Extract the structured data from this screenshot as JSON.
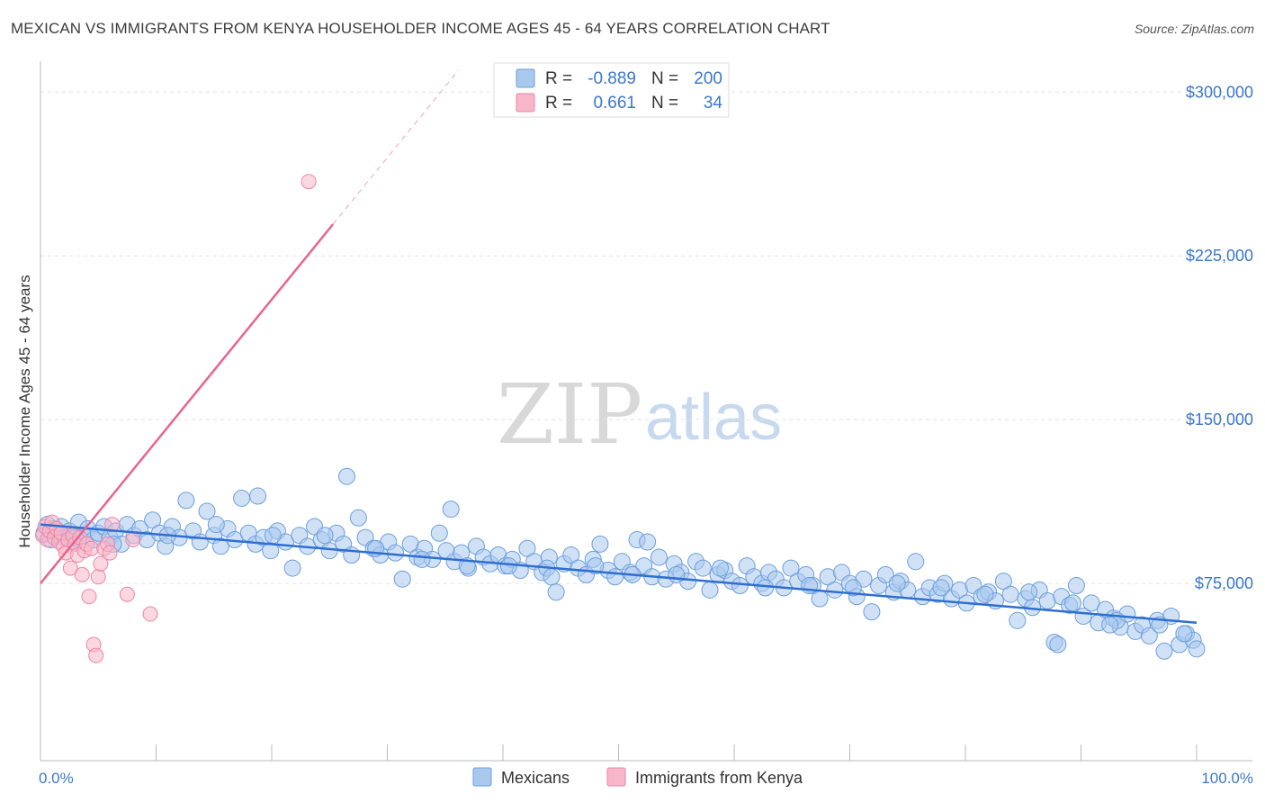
{
  "header": {
    "title": "MEXICAN VS IMMIGRANTS FROM KENYA HOUSEHOLDER INCOME AGES 45 - 64 YEARS CORRELATION CHART",
    "source": "Source: ZipAtlas.com"
  },
  "watermark": {
    "zip": "ZIP",
    "atlas": "atlas"
  },
  "legend_top": [
    {
      "r_label": "R =",
      "r_value": "-0.889",
      "n_label": "N =",
      "n_value": "200"
    },
    {
      "r_label": "R =",
      "r_value": "0.661",
      "n_label": "N =",
      "n_value": "34"
    }
  ],
  "legend_bottom": [
    "Mexicans",
    "Immigrants from Kenya"
  ],
  "colors": {
    "mexicans_fill": "#a9c8ee",
    "mexicans_stroke": "#6b9fdc",
    "mexicans_line": "#2f6fd1",
    "kenya_fill": "#f7b6c9",
    "kenya_stroke": "#ee86a6",
    "kenya_line": "#e8648f",
    "tick_text": "#3b78c9",
    "grid": "#e3e3e3"
  },
  "chart_data": {
    "type": "scatter",
    "xlabel": "",
    "ylabel": "Householder Income Ages 45 - 64 years",
    "xlim": [
      0,
      100
    ],
    "ylim": [
      0,
      310000
    ],
    "x_tick_labels": [
      "0.0%",
      "100.0%"
    ],
    "y_ticks": [
      75000,
      150000,
      225000,
      300000
    ],
    "y_tick_labels": [
      "$75,000",
      "$150,000",
      "$225,000",
      "$300,000"
    ],
    "grid": true,
    "series": [
      {
        "name": "Mexicans",
        "r": -0.889,
        "n": 200,
        "trend": {
          "x": [
            0,
            100
          ],
          "y": [
            102000,
            57000
          ]
        },
        "points": [
          [
            0.3,
            98000
          ],
          [
            0.6,
            102000
          ],
          [
            0.9,
            95000
          ],
          [
            1.2,
            100000
          ],
          [
            1.5,
            97000
          ],
          [
            1.8,
            101000
          ],
          [
            2.1,
            96000
          ],
          [
            2.5,
            99000
          ],
          [
            2.9,
            94000
          ],
          [
            3.3,
            103000
          ],
          [
            3.7,
            97000
          ],
          [
            4.1,
            100000
          ],
          [
            4.6,
            95000
          ],
          [
            5.0,
            98000
          ],
          [
            5.5,
            101000
          ],
          [
            6.0,
            96000
          ],
          [
            6.5,
            99000
          ],
          [
            7.0,
            93000
          ],
          [
            7.5,
            102000
          ],
          [
            8.1,
            97000
          ],
          [
            8.6,
            100000
          ],
          [
            9.2,
            95000
          ],
          [
            9.7,
            104000
          ],
          [
            10.3,
            98000
          ],
          [
            10.8,
            92000
          ],
          [
            11.4,
            101000
          ],
          [
            12.0,
            96000
          ],
          [
            12.6,
            113000
          ],
          [
            13.2,
            99000
          ],
          [
            13.8,
            94000
          ],
          [
            14.4,
            108000
          ],
          [
            15.0,
            97000
          ],
          [
            15.6,
            92000
          ],
          [
            16.2,
            100000
          ],
          [
            16.8,
            95000
          ],
          [
            17.4,
            114000
          ],
          [
            18.0,
            98000
          ],
          [
            18.6,
            93000
          ],
          [
            19.3,
            96000
          ],
          [
            19.9,
            90000
          ],
          [
            20.5,
            99000
          ],
          [
            21.2,
            94000
          ],
          [
            21.8,
            82000
          ],
          [
            22.4,
            97000
          ],
          [
            23.1,
            92000
          ],
          [
            23.7,
            101000
          ],
          [
            24.3,
            95000
          ],
          [
            25.0,
            90000
          ],
          [
            25.6,
            98000
          ],
          [
            26.2,
            93000
          ],
          [
            26.9,
            88000
          ],
          [
            27.5,
            105000
          ],
          [
            28.1,
            96000
          ],
          [
            28.8,
            91000
          ],
          [
            29.4,
            88000
          ],
          [
            30.1,
            94000
          ],
          [
            30.7,
            89000
          ],
          [
            31.3,
            77000
          ],
          [
            32.0,
            93000
          ],
          [
            32.6,
            87000
          ],
          [
            33.2,
            91000
          ],
          [
            33.9,
            86000
          ],
          [
            34.5,
            98000
          ],
          [
            35.1,
            90000
          ],
          [
            35.8,
            85000
          ],
          [
            36.4,
            89000
          ],
          [
            37.0,
            82000
          ],
          [
            37.7,
            92000
          ],
          [
            38.3,
            87000
          ],
          [
            38.9,
            84000
          ],
          [
            39.6,
            88000
          ],
          [
            40.2,
            83000
          ],
          [
            40.8,
            86000
          ],
          [
            41.5,
            81000
          ],
          [
            42.1,
            91000
          ],
          [
            42.7,
            85000
          ],
          [
            43.4,
            80000
          ],
          [
            44.0,
            87000
          ],
          [
            44.6,
            71000
          ],
          [
            45.3,
            84000
          ],
          [
            45.9,
            88000
          ],
          [
            46.5,
            82000
          ],
          [
            47.2,
            79000
          ],
          [
            47.8,
            86000
          ],
          [
            48.4,
            93000
          ],
          [
            49.1,
            81000
          ],
          [
            49.7,
            78000
          ],
          [
            50.3,
            85000
          ],
          [
            51.0,
            80000
          ],
          [
            51.6,
            95000
          ],
          [
            52.2,
            83000
          ],
          [
            52.9,
            78000
          ],
          [
            53.5,
            87000
          ],
          [
            54.1,
            77000
          ],
          [
            54.8,
            84000
          ],
          [
            55.4,
            80000
          ],
          [
            56.0,
            76000
          ],
          [
            56.7,
            85000
          ],
          [
            57.3,
            82000
          ],
          [
            57.9,
            72000
          ],
          [
            58.6,
            79000
          ],
          [
            59.2,
            81000
          ],
          [
            59.8,
            76000
          ],
          [
            60.5,
            74000
          ],
          [
            61.1,
            83000
          ],
          [
            61.7,
            78000
          ],
          [
            62.4,
            75000
          ],
          [
            63.0,
            80000
          ],
          [
            63.6,
            77000
          ],
          [
            64.3,
            73000
          ],
          [
            64.9,
            82000
          ],
          [
            65.5,
            76000
          ],
          [
            66.2,
            79000
          ],
          [
            66.8,
            74000
          ],
          [
            67.4,
            68000
          ],
          [
            68.1,
            78000
          ],
          [
            68.7,
            72000
          ],
          [
            69.3,
            80000
          ],
          [
            70.0,
            75000
          ],
          [
            70.6,
            69000
          ],
          [
            71.2,
            77000
          ],
          [
            71.9,
            62000
          ],
          [
            72.5,
            74000
          ],
          [
            73.1,
            79000
          ],
          [
            73.8,
            71000
          ],
          [
            74.4,
            76000
          ],
          [
            75.0,
            72000
          ],
          [
            75.7,
            85000
          ],
          [
            76.3,
            69000
          ],
          [
            76.9,
            73000
          ],
          [
            77.6,
            70000
          ],
          [
            78.2,
            75000
          ],
          [
            78.8,
            68000
          ],
          [
            79.5,
            72000
          ],
          [
            80.1,
            66000
          ],
          [
            80.7,
            74000
          ],
          [
            81.4,
            69000
          ],
          [
            82.0,
            71000
          ],
          [
            82.6,
            67000
          ],
          [
            83.3,
            76000
          ],
          [
            83.9,
            70000
          ],
          [
            84.5,
            58000
          ],
          [
            85.2,
            68000
          ],
          [
            85.8,
            64000
          ],
          [
            86.4,
            72000
          ],
          [
            87.1,
            67000
          ],
          [
            87.7,
            48000
          ],
          [
            88.3,
            69000
          ],
          [
            89.0,
            65000
          ],
          [
            89.6,
            74000
          ],
          [
            90.2,
            60000
          ],
          [
            90.9,
            66000
          ],
          [
            91.5,
            57000
          ],
          [
            92.1,
            63000
          ],
          [
            92.8,
            59000
          ],
          [
            93.4,
            55000
          ],
          [
            94.0,
            61000
          ],
          [
            94.7,
            53000
          ],
          [
            95.3,
            56000
          ],
          [
            95.9,
            51000
          ],
          [
            96.6,
            58000
          ],
          [
            97.2,
            44000
          ],
          [
            97.8,
            60000
          ],
          [
            98.5,
            47000
          ],
          [
            99.1,
            52000
          ],
          [
            99.7,
            49000
          ],
          [
            35.5,
            109000
          ],
          [
            52.5,
            94000
          ],
          [
            18.8,
            115000
          ],
          [
            43.8,
            82000
          ],
          [
            26.5,
            124000
          ],
          [
            3.0,
            96000
          ],
          [
            6.3,
            93000
          ],
          [
            11.0,
            97000
          ],
          [
            15.2,
            102000
          ],
          [
            20.1,
            97000
          ],
          [
            24.6,
            97000
          ],
          [
            29.0,
            91000
          ],
          [
            33.0,
            86000
          ],
          [
            36.9,
            83000
          ],
          [
            40.5,
            83000
          ],
          [
            44.2,
            78000
          ],
          [
            48.0,
            83000
          ],
          [
            51.2,
            79000
          ],
          [
            55.0,
            79000
          ],
          [
            58.8,
            82000
          ],
          [
            62.7,
            73000
          ],
          [
            66.5,
            74000
          ],
          [
            70.3,
            73000
          ],
          [
            74.1,
            75000
          ],
          [
            77.9,
            73000
          ],
          [
            81.7,
            70000
          ],
          [
            85.5,
            71000
          ],
          [
            89.3,
            66000
          ],
          [
            93.1,
            58000
          ],
          [
            96.8,
            56000
          ],
          [
            98.9,
            52000
          ],
          [
            100.0,
            45000
          ],
          [
            92.5,
            56000
          ],
          [
            88.0,
            47000
          ]
        ]
      },
      {
        "name": "Immigrants from Kenya",
        "r": 0.661,
        "n": 34,
        "trend": {
          "x": [
            0,
            100
          ],
          "y": [
            75000,
            725000
          ]
        },
        "points": [
          [
            0.2,
            97000
          ],
          [
            0.4,
            101000
          ],
          [
            0.6,
            95000
          ],
          [
            0.8,
            99000
          ],
          [
            1.0,
            103000
          ],
          [
            1.2,
            96000
          ],
          [
            1.4,
            100000
          ],
          [
            1.6,
            94000
          ],
          [
            1.8,
            98000
          ],
          [
            2.0,
            92000
          ],
          [
            2.2,
            89000
          ],
          [
            2.4,
            95000
          ],
          [
            2.6,
            82000
          ],
          [
            2.8,
            97000
          ],
          [
            3.0,
            93000
          ],
          [
            3.2,
            88000
          ],
          [
            3.4,
            96000
          ],
          [
            3.6,
            79000
          ],
          [
            3.8,
            90000
          ],
          [
            4.0,
            93000
          ],
          [
            4.2,
            69000
          ],
          [
            4.4,
            91000
          ],
          [
            4.6,
            47000
          ],
          [
            4.8,
            42000
          ],
          [
            5.0,
            78000
          ],
          [
            5.2,
            84000
          ],
          [
            5.5,
            91000
          ],
          [
            5.8,
            93000
          ],
          [
            6.0,
            89000
          ],
          [
            6.2,
            102000
          ],
          [
            7.5,
            70000
          ],
          [
            8.0,
            95000
          ],
          [
            9.5,
            61000
          ],
          [
            23.2,
            259000
          ]
        ]
      }
    ]
  }
}
